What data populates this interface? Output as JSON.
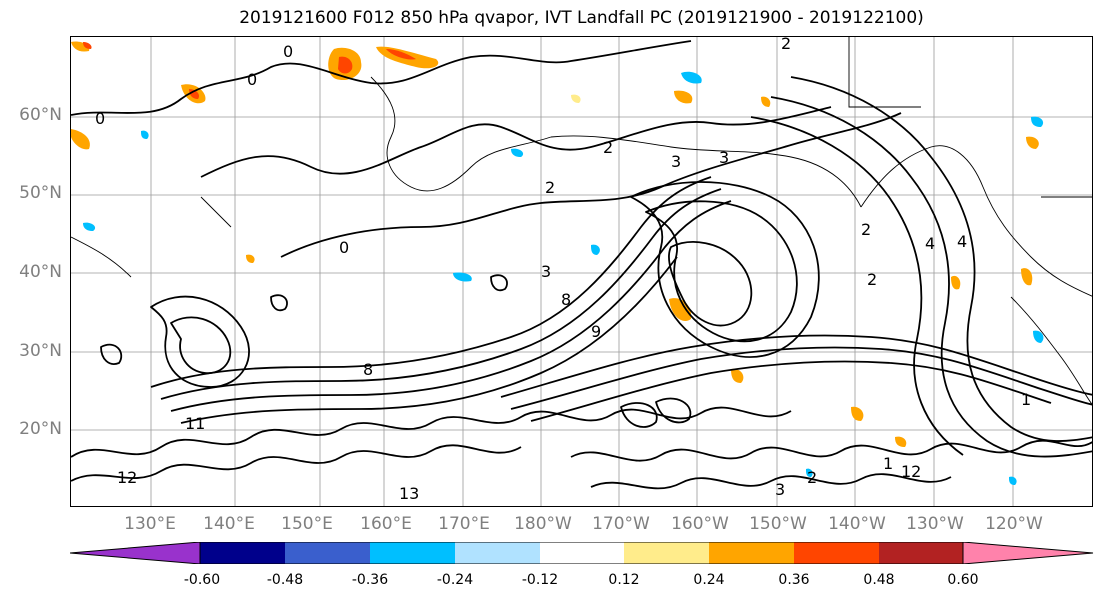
{
  "title": "2019121600 F012 850 hPa qvapor, IVT Landfall PC (2019121900 - 2019122100)",
  "lat_labels": [
    "60°N",
    "50°N",
    "40°N",
    "30°N",
    "20°N"
  ],
  "lon_labels": [
    "130°E",
    "140°E",
    "150°E",
    "160°E",
    "170°E",
    "180°W",
    "170°W",
    "160°W",
    "150°W",
    "140°W",
    "130°W",
    "120°W"
  ],
  "colorbar": {
    "ticks": [
      "-0.60",
      "-0.48",
      "-0.36",
      "-0.24",
      "-0.12",
      "0.12",
      "0.24",
      "0.36",
      "0.48",
      "0.60"
    ],
    "colors": [
      "#9932cc",
      "#00008b",
      "#3a5fcd",
      "#00bfff",
      "#b0e2ff",
      "#ffffff",
      "#ffec8b",
      "#ffa500",
      "#ff4500",
      "#b22222",
      "#ff82ab"
    ]
  },
  "contour_labels": [
    "0",
    "0",
    "0",
    "0",
    "2",
    "2",
    "2",
    "3",
    "3",
    "3",
    "2",
    "2",
    "4",
    "4",
    "8",
    "8",
    "9",
    "11",
    "12",
    "13",
    "12",
    "3",
    "2",
    "1",
    "1"
  ],
  "layers": {
    "map_frame": "map-frame",
    "coastlines": "coastline-overlay",
    "contours": "qvapor-contours",
    "shading": "ivt-pc-shading"
  }
}
